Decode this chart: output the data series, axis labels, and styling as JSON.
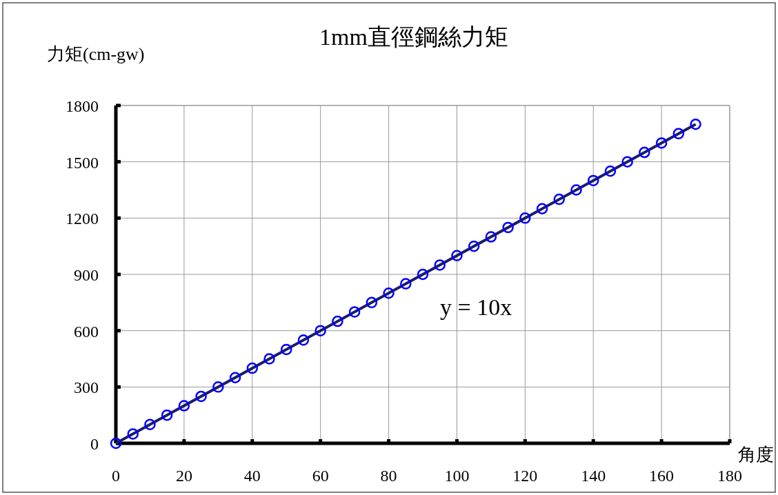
{
  "chart_data": {
    "type": "scatter",
    "title": "1mm直徑鋼絲力矩",
    "xlabel": "角度",
    "ylabel": "力矩(cm-gw)",
    "xlim": [
      0,
      180
    ],
    "xticks": [
      0,
      20,
      40,
      60,
      80,
      100,
      120,
      140,
      160,
      180
    ],
    "ylim": [
      0,
      1800
    ],
    "yticks": [
      0,
      300,
      600,
      900,
      1200,
      1500,
      1800
    ],
    "grid": true,
    "series": [
      {
        "type": "line",
        "color": "#1c1c6b",
        "x": [
          0,
          170
        ],
        "values": [
          0,
          1700
        ],
        "line_style": "solid"
      },
      {
        "color": "#0000ff",
        "marker": "circle",
        "x": [
          0,
          5,
          10,
          15,
          20,
          25,
          30,
          35,
          40,
          45,
          50,
          55,
          60,
          65,
          70,
          75,
          80,
          85,
          90,
          95,
          100,
          105,
          110,
          115,
          120,
          125,
          130,
          135,
          140,
          145,
          150,
          155,
          160,
          165,
          170
        ],
        "values": [
          0,
          50,
          100,
          150,
          200,
          250,
          300,
          350,
          400,
          450,
          500,
          550,
          600,
          650,
          700,
          750,
          800,
          850,
          900,
          950,
          1000,
          1050,
          1100,
          1150,
          1200,
          1250,
          1300,
          1350,
          1400,
          1450,
          1500,
          1550,
          1600,
          1650,
          1700
        ]
      }
    ],
    "annotations": [
      "y = 10x"
    ]
  }
}
